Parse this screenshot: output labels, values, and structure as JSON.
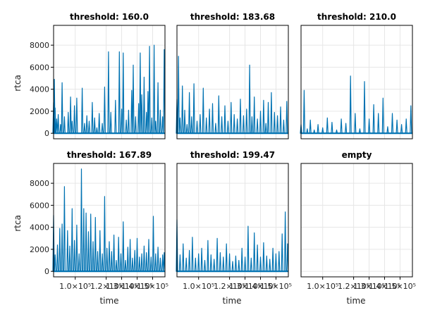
{
  "figure": {
    "panels": [
      {
        "title": "threshold: 160.0",
        "show_y": true,
        "show_x": false,
        "empty": false
      },
      {
        "title": "threshold: 183.68",
        "show_y": false,
        "show_x": false,
        "empty": false
      },
      {
        "title": "threshold: 210.0",
        "show_y": false,
        "show_x": false,
        "empty": false
      },
      {
        "title": "threshold: 167.89",
        "show_y": true,
        "show_x": true,
        "empty": false
      },
      {
        "title": "threshold: 199.47",
        "show_y": false,
        "show_x": true,
        "empty": false
      },
      {
        "title": "empty",
        "show_y": false,
        "show_x": true,
        "empty": true
      }
    ],
    "ylabel": "rtca",
    "xlabel": "time",
    "y_ticks": [
      "0",
      "2000",
      "4000",
      "6000",
      "8000"
    ],
    "y_tick_values": [
      0,
      2000,
      4000,
      6000,
      8000
    ],
    "x_ticks": [
      "1.0×10⁵",
      "1.2×10⁵",
      "1.3×10⁵",
      "1.4×10⁵",
      "1.5×10⁵"
    ],
    "x_tick_values": [
      100000,
      120000,
      130000,
      140000,
      150000
    ],
    "line_color": "#0072b2",
    "grid_color": "#e6e6e6"
  },
  "chart_data": {
    "type": "line",
    "xlabel": "time",
    "ylabel": "rtca",
    "xlim": [
      86000,
      158000
    ],
    "ylim": [
      -500,
      9800
    ],
    "grid": true,
    "series": [
      {
        "name": "threshold: 160.0",
        "x": [
          86000,
          86500,
          87000,
          88000,
          89000,
          90500,
          91500,
          93000,
          95500,
          97000,
          98000,
          99500,
          101000,
          104500,
          106000,
          107500,
          109000,
          111000,
          112500,
          114000,
          115500,
          117500,
          119000,
          121500,
          123000,
          126000,
          128500,
          130000,
          131000,
          133000,
          134500,
          136500,
          137500,
          139000,
          141000,
          142000,
          143000,
          144500,
          146000,
          147000,
          148000,
          149500,
          151000,
          152000,
          153500,
          155000,
          156500,
          157500
        ],
        "y": [
          2800,
          4900,
          2300,
          1300,
          1700,
          800,
          4600,
          1500,
          1900,
          3300,
          1100,
          2500,
          3200,
          4100,
          900,
          1600,
          1100,
          2800,
          1400,
          500,
          1800,
          900,
          4200,
          7400,
          1900,
          3000,
          7400,
          2200,
          7300,
          1200,
          2100,
          3900,
          6200,
          1500,
          2700,
          7300,
          3500,
          5100,
          1900,
          3800,
          7900,
          1400,
          8000,
          1100,
          4600,
          2100,
          1500,
          7600
        ]
      },
      {
        "name": "threshold: 183.68",
        "x": [
          86000,
          87000,
          88000,
          89500,
          91000,
          92500,
          94000,
          95500,
          97000,
          99000,
          101000,
          103000,
          105000,
          107000,
          109000,
          111000,
          113000,
          115000,
          117000,
          119000,
          121000,
          123000,
          125000,
          127000,
          129000,
          131000,
          133000,
          134500,
          136000,
          138000,
          140000,
          142000,
          143500,
          145000,
          147000,
          149000,
          151000,
          153000,
          155000,
          157000
        ],
        "y": [
          3100,
          7000,
          1400,
          4300,
          2100,
          800,
          3700,
          1500,
          4500,
          1100,
          1700,
          4100,
          1400,
          2200,
          2700,
          900,
          3400,
          1500,
          2500,
          1100,
          2800,
          1700,
          1300,
          3100,
          1600,
          2200,
          6200,
          1500,
          3300,
          1300,
          2000,
          3000,
          900,
          2800,
          3700,
          1900,
          1600,
          2400,
          1200,
          2900
        ]
      },
      {
        "name": "threshold: 210.0",
        "x": [
          86000,
          88000,
          90000,
          92000,
          94500,
          97000,
          100000,
          103000,
          106000,
          109000,
          112000,
          115000,
          118000,
          121000,
          124000,
          127000,
          130000,
          133000,
          136000,
          139000,
          142000,
          145000,
          148000,
          151000,
          154000,
          157000
        ],
        "y": [
          800,
          3900,
          400,
          1200,
          300,
          800,
          500,
          1400,
          1000,
          300,
          1300,
          900,
          5200,
          1800,
          400,
          4700,
          1300,
          2600,
          1800,
          3200,
          600,
          1800,
          1200,
          800,
          1300,
          2500
        ]
      },
      {
        "name": "threshold: 167.89",
        "x": [
          86000,
          87000,
          88500,
          90000,
          91500,
          93000,
          95000,
          96500,
          98000,
          99500,
          101000,
          102500,
          104000,
          105500,
          107000,
          108500,
          110000,
          111500,
          113000,
          114500,
          116000,
          117500,
          119000,
          120500,
          122000,
          123500,
          125000,
          126500,
          128000,
          129500,
          131000,
          132500,
          134000,
          135500,
          137000,
          138500,
          140000,
          141500,
          143000,
          144500,
          146000,
          147500,
          149000,
          150500,
          152000,
          153500,
          155000,
          156500,
          157500
        ],
        "y": [
          5100,
          1500,
          2400,
          3900,
          4300,
          7700,
          3700,
          2300,
          5700,
          2800,
          4200,
          1600,
          9300,
          5700,
          5300,
          3600,
          5200,
          2700,
          4900,
          1800,
          3700,
          1600,
          6800,
          2100,
          2700,
          1800,
          3300,
          1000,
          3100,
          1600,
          4500,
          1000,
          2200,
          2900,
          1200,
          1900,
          3000,
          1300,
          1600,
          2300,
          1700,
          2900,
          1300,
          5000,
          1600,
          2200,
          1200,
          1500,
          1700
        ]
      },
      {
        "name": "threshold: 199.47",
        "x": [
          86000,
          88000,
          90000,
          92000,
          94000,
          96000,
          98000,
          100000,
          102000,
          104000,
          106000,
          108000,
          110000,
          112000,
          114000,
          116000,
          118000,
          120000,
          122000,
          124000,
          126000,
          128000,
          130000,
          132000,
          134000,
          136000,
          138000,
          140000,
          142000,
          144000,
          146000,
          148000,
          150000,
          152000,
          154000,
          156000,
          157500
        ],
        "y": [
          4700,
          1500,
          2500,
          1200,
          1900,
          3100,
          1200,
          1600,
          2100,
          1000,
          2800,
          1500,
          1100,
          3000,
          1700,
          1300,
          2500,
          1600,
          900,
          1400,
          1000,
          2100,
          1300,
          4100,
          1200,
          3500,
          2400,
          1300,
          2600,
          1400,
          1100,
          2100,
          1600,
          1800,
          3400,
          5400,
          2500
        ]
      }
    ]
  }
}
